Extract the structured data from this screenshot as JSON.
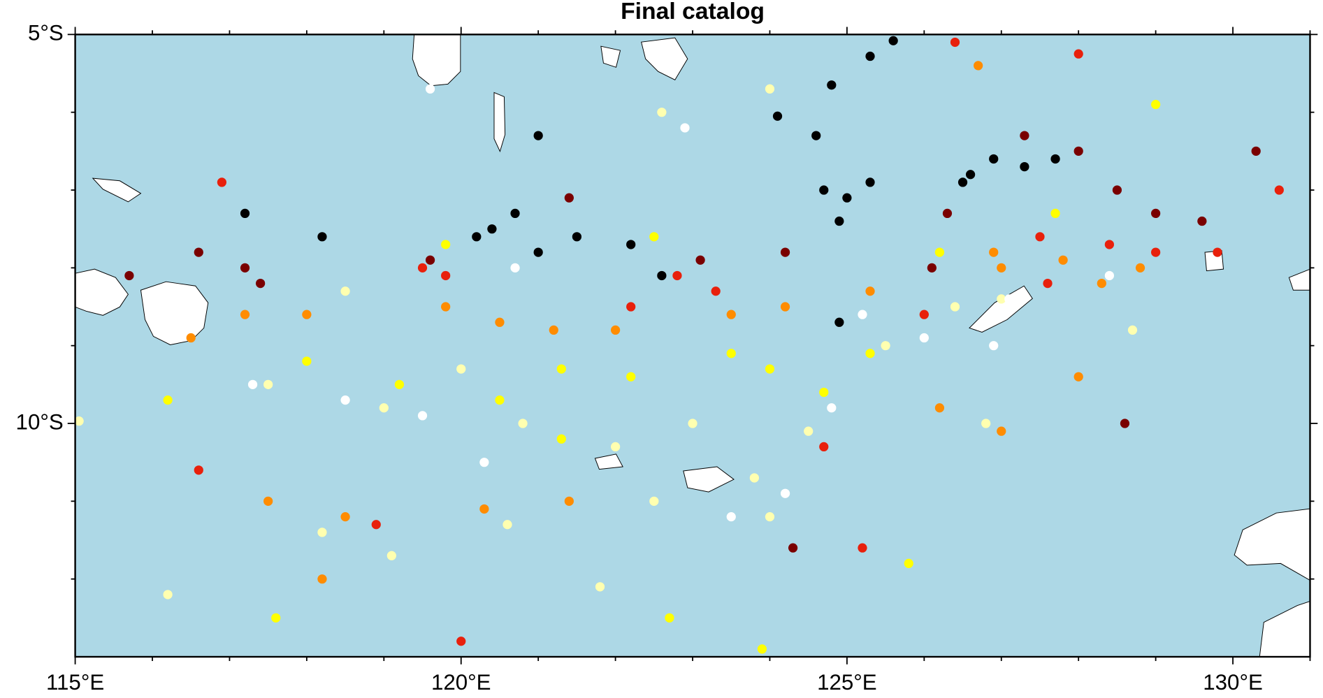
{
  "chart_data": {
    "type": "scatter",
    "title": "Final catalog",
    "xlim": [
      115,
      131
    ],
    "ylim": [
      -13,
      -5
    ],
    "xticks": [
      {
        "value": 115,
        "label": "115°E"
      },
      {
        "value": 120,
        "label": "120°E"
      },
      {
        "value": 125,
        "label": "125°E"
      },
      {
        "value": 130,
        "label": "130°E"
      }
    ],
    "yticks": [
      {
        "value": -5,
        "label": "5°S"
      },
      {
        "value": -10,
        "label": "10°S"
      }
    ],
    "xminor": [
      116,
      117,
      118,
      119,
      121,
      122,
      123,
      124,
      126,
      127,
      128,
      129,
      131
    ],
    "yminor": [
      -6,
      -7,
      -8,
      -9,
      -11,
      -12
    ],
    "background": "#add8e6",
    "series": [
      {
        "color": "#ffffb0",
        "x": [
          118.5,
          119.0,
          120.0,
          120.8,
          122.0,
          123.0,
          123.8,
          124.5,
          125.5,
          126.4,
          127.0,
          117.5,
          118.2,
          119.1,
          120.6,
          122.5,
          124.0,
          126.8,
          115.05,
          122.6,
          124.0,
          121.8,
          116.2,
          128.7
        ],
        "y": [
          -8.3,
          -9.8,
          -9.3,
          -10.0,
          -10.3,
          -10.0,
          -10.7,
          -10.1,
          -9.0,
          -8.5,
          -8.4,
          -9.5,
          -11.4,
          -11.7,
          -11.3,
          -11.0,
          -11.2,
          -10.0,
          -9.97,
          -6.0,
          -5.7,
          -12.1,
          -12.2,
          -8.8
        ]
      },
      {
        "color": "#ffffff",
        "x": [
          119.5,
          120.7,
          124.2,
          125.2,
          126.0,
          124.8,
          123.5,
          126.9,
          118.5,
          119.6,
          122.9,
          127.1,
          120.3,
          128.4,
          117.3
        ],
        "y": [
          -9.9,
          -8.0,
          -10.9,
          -8.6,
          -8.9,
          -9.8,
          -11.2,
          -9.0,
          -9.7,
          -5.7,
          -6.2,
          -8.4,
          -10.5,
          -8.1,
          -9.5
        ]
      },
      {
        "color": "#ffff00",
        "x": [
          118.0,
          119.2,
          120.5,
          121.3,
          122.2,
          123.5,
          124.0,
          124.7,
          125.3,
          119.8,
          122.5,
          126.2,
          127.7,
          117.6,
          122.7,
          123.9,
          121.3,
          125.8,
          129.0,
          116.2
        ],
        "y": [
          -9.2,
          -9.5,
          -9.7,
          -9.3,
          -9.4,
          -9.1,
          -9.3,
          -9.6,
          -9.1,
          -7.7,
          -7.6,
          -7.8,
          -7.3,
          -12.5,
          -12.5,
          -12.9,
          -10.2,
          -11.8,
          -5.9,
          -9.7
        ]
      },
      {
        "color": "#ff8c00",
        "x": [
          117.2,
          118.0,
          119.8,
          120.5,
          121.2,
          122.0,
          123.5,
          124.2,
          127.0,
          127.8,
          128.3,
          128.8,
          126.9,
          125.3,
          116.5,
          118.5,
          117.5,
          118.2,
          126.7,
          127.0,
          128.0,
          121.4,
          120.3,
          126.2
        ],
        "y": [
          -8.6,
          -8.6,
          -8.5,
          -8.7,
          -8.8,
          -8.8,
          -8.6,
          -8.5,
          -8.0,
          -7.9,
          -8.2,
          -8.0,
          -7.8,
          -8.3,
          -8.9,
          -11.2,
          -11.0,
          -12.0,
          -5.4,
          -10.1,
          -9.4,
          -11.0,
          -11.1,
          -9.8
        ]
      },
      {
        "color": "#e8200c",
        "x": [
          119.5,
          119.8,
          122.8,
          123.3,
          127.5,
          128.4,
          129.0,
          129.8,
          130.6,
          128.0,
          126.4,
          127.6,
          122.2,
          126.0,
          116.6,
          118.9,
          120.0,
          125.2,
          116.9,
          124.7
        ],
        "y": [
          -8.0,
          -8.1,
          -8.1,
          -8.3,
          -7.6,
          -7.7,
          -7.8,
          -7.8,
          -7.0,
          -5.25,
          -5.1,
          -8.2,
          -8.5,
          -8.6,
          -10.6,
          -11.3,
          -12.8,
          -11.6,
          -6.9,
          -10.3
        ]
      },
      {
        "color": "#7a0000",
        "x": [
          117.4,
          117.2,
          119.6,
          123.1,
          124.2,
          126.3,
          128.0,
          128.5,
          129.0,
          129.6,
          130.3,
          126.1,
          116.6,
          115.7,
          128.6,
          124.3,
          127.3,
          121.4
        ],
        "y": [
          -8.2,
          -8.0,
          -7.9,
          -7.9,
          -7.8,
          -7.3,
          -6.5,
          -7.0,
          -7.3,
          -7.4,
          -6.5,
          -8.0,
          -7.8,
          -8.1,
          -10.0,
          -11.6,
          -6.3,
          -7.1
        ]
      },
      {
        "color": "#000000",
        "x": [
          125.6,
          125.3,
          124.8,
          124.1,
          124.6,
          125.0,
          124.7,
          125.3,
          124.9,
          120.4,
          120.2,
          121.0,
          120.7,
          121.5,
          122.2,
          126.6,
          126.9,
          127.3,
          126.5,
          127.7,
          118.2,
          117.2,
          122.6,
          124.9,
          121.0
        ],
        "y": [
          -5.08,
          -5.28,
          -5.65,
          -6.05,
          -6.3,
          -7.1,
          -7.0,
          -6.9,
          -7.4,
          -7.5,
          -7.6,
          -7.8,
          -7.3,
          -7.6,
          -7.7,
          -6.8,
          -6.6,
          -6.7,
          -6.9,
          -6.6,
          -7.6,
          -7.3,
          -8.1,
          -8.7,
          -6.3
        ]
      }
    ]
  }
}
